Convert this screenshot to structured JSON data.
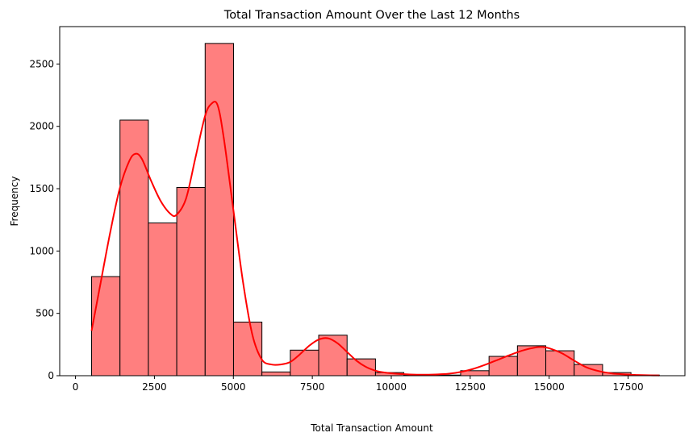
{
  "chart_data": {
    "type": "bar",
    "title": "Total Transaction Amount Over the Last 12 Months",
    "xlabel": "Total Transaction Amount",
    "ylabel": "Frequency",
    "xlim": [
      -500,
      19300
    ],
    "ylim": [
      0,
      2800
    ],
    "xticks": [
      0,
      2500,
      5000,
      7500,
      10000,
      12500,
      15000,
      17500
    ],
    "yticks": [
      0,
      500,
      1000,
      1500,
      2000,
      2500
    ],
    "bin_edges": [
      510,
      1409,
      2308,
      3207,
      4106,
      5005,
      5904,
      6803,
      7702,
      8601,
      9500,
      10399,
      11298,
      12197,
      13096,
      13995,
      14894,
      15793,
      16692,
      17591,
      18490
    ],
    "counts": [
      795,
      2050,
      1225,
      1510,
      2665,
      430,
      30,
      205,
      325,
      135,
      25,
      5,
      5,
      40,
      155,
      240,
      200,
      90,
      25,
      5
    ],
    "bar_color": "#ff7f7f",
    "bar_edge_color": "#000000",
    "kde": {
      "color": "#ff0000",
      "x": [
        510,
        800,
        1100,
        1400,
        1700,
        1900,
        2100,
        2400,
        2700,
        3000,
        3200,
        3500,
        3800,
        4100,
        4300,
        4500,
        4700,
        5000,
        5300,
        5600,
        5900,
        6200,
        6500,
        6800,
        7100,
        7400,
        7700,
        8000,
        8300,
        8600,
        8900,
        9200,
        9500,
        9800,
        10200,
        10600,
        11000,
        11400,
        11800,
        12200,
        12600,
        13000,
        13400,
        13800,
        14200,
        14600,
        14800,
        15000,
        15400,
        15800,
        16200,
        16600,
        17000,
        17400,
        17800,
        18200,
        18490
      ],
      "y": [
        360,
        750,
        1150,
        1500,
        1720,
        1780,
        1740,
        1560,
        1400,
        1300,
        1290,
        1420,
        1750,
        2080,
        2180,
        2170,
        1900,
        1330,
        760,
        330,
        130,
        90,
        90,
        110,
        170,
        240,
        290,
        300,
        260,
        190,
        120,
        70,
        40,
        25,
        15,
        10,
        8,
        10,
        15,
        30,
        55,
        90,
        130,
        170,
        205,
        228,
        230,
        220,
        180,
        120,
        65,
        35,
        18,
        10,
        6,
        3,
        2
      ]
    }
  }
}
